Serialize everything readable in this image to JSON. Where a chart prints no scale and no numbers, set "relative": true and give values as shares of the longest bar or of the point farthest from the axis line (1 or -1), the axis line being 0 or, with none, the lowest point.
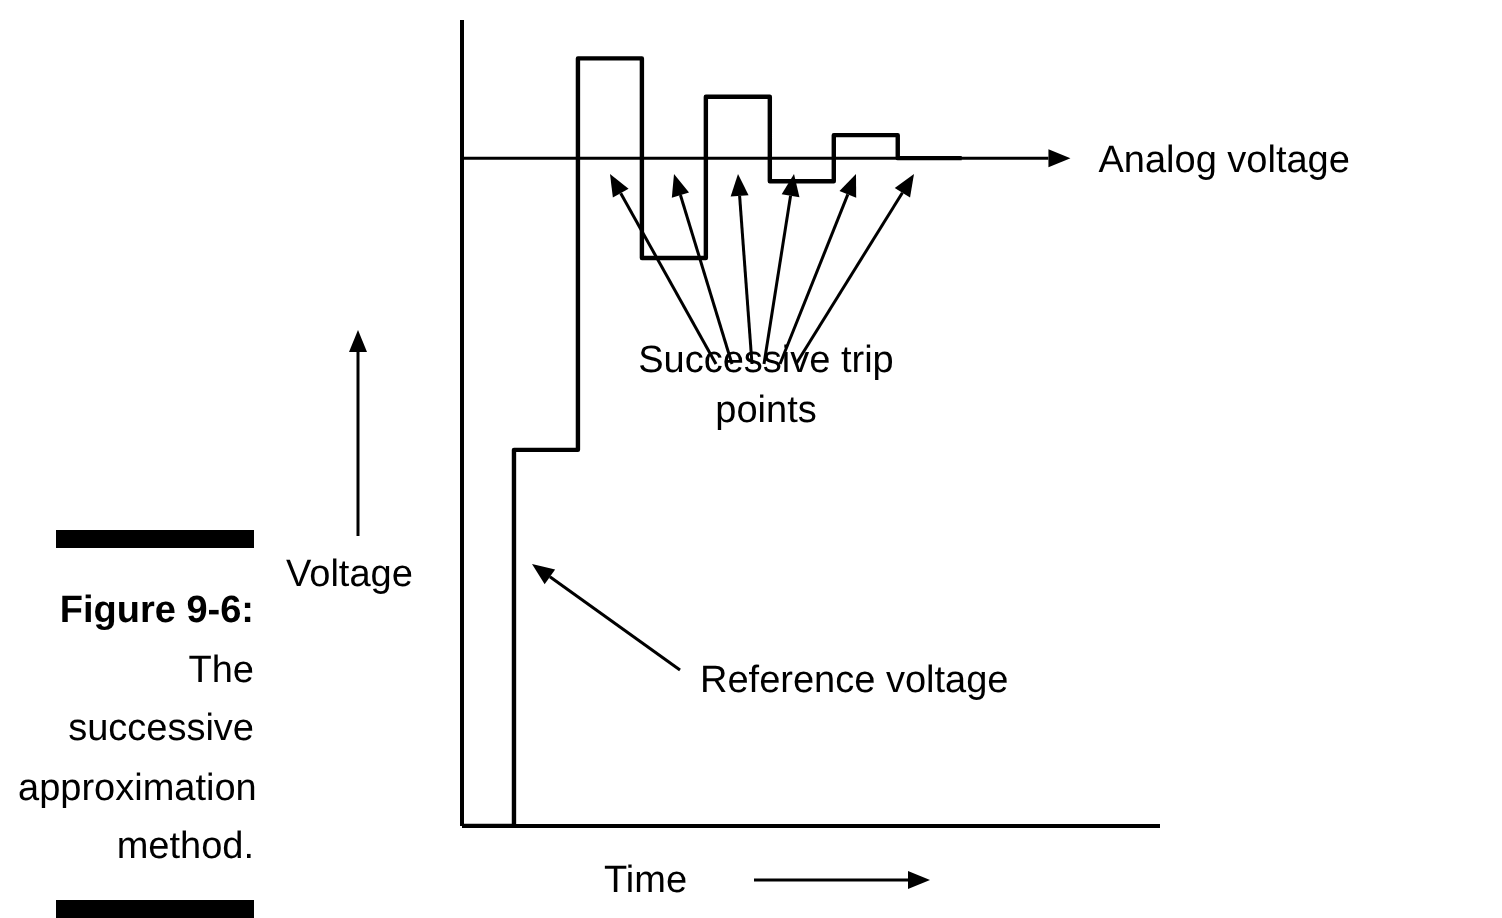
{
  "chart_data": {
    "type": "step",
    "relative": true,
    "title": "Figure 9-6:",
    "subtitle": "The successive approximation method.",
    "xlabel": "Time",
    "ylabel": "Voltage",
    "categories": [
      null,
      null,
      null,
      null,
      null,
      null,
      null,
      null,
      null
    ],
    "values": [
      0,
      0.49,
      1,
      0.74,
      0.95,
      0.84,
      0.9,
      0.87,
      0.87
    ],
    "color": "#000000",
    "ref_lines": [
      {
        "axis": "y",
        "value": 0.87,
        "label": "Analog voltage"
      }
    ],
    "annotations": [
      "Successive trip points",
      "Reference voltage"
    ]
  }
}
